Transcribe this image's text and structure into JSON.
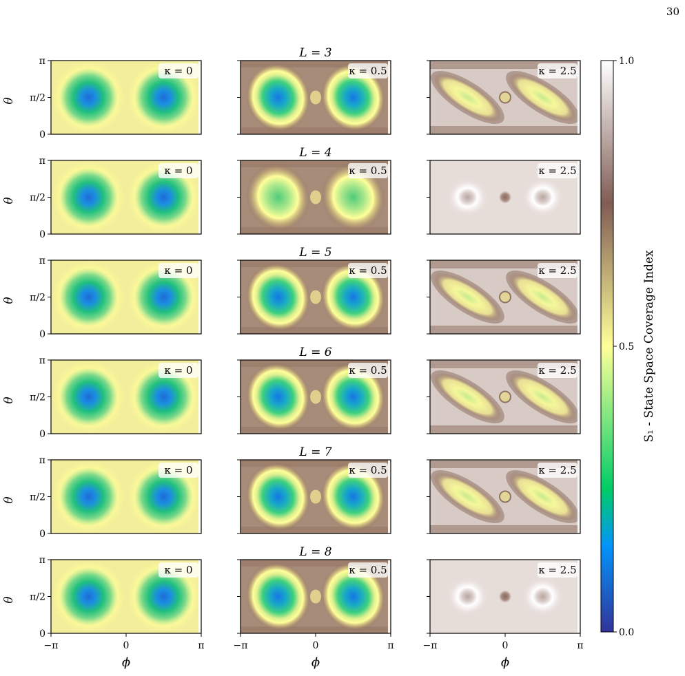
{
  "page_number": "30",
  "row_titles": [
    "L = 3",
    "L = 4",
    "L = 5",
    "L = 6",
    "L = 7",
    "L = 8"
  ],
  "column_kappa_labels": [
    "κ = 0",
    "κ = 0.5",
    "κ = 2.5"
  ],
  "y_axis_label": "θ",
  "y_ticks": [
    "0",
    "π/2",
    "π"
  ],
  "x_axis_label": "ϕ",
  "x_ticks": [
    "−π",
    "0",
    "π"
  ],
  "colorbar": {
    "label": "S₁ - State Space Coverage Index",
    "ticks": [
      "0.0",
      "0.5",
      "1.0"
    ],
    "colormap": "terrain",
    "colors": [
      "#333399",
      "#0294fa",
      "#01cc66",
      "#ffff99",
      "#805c54",
      "#ffffff"
    ]
  },
  "chart_data": {
    "type": "heatmap",
    "grid": {
      "rows": 6,
      "cols": 3
    },
    "rows": [
      3,
      4,
      5,
      6,
      7,
      8
    ],
    "kappa": [
      0,
      0.5,
      2.5
    ],
    "x_range": [
      "-π",
      "π"
    ],
    "y_range": [
      "0",
      "π"
    ],
    "value_range": [
      0.0,
      1.0
    ],
    "xlabel": "ϕ",
    "ylabel": "θ",
    "colorbar_label": "S₁ - State Space Coverage Index"
  }
}
